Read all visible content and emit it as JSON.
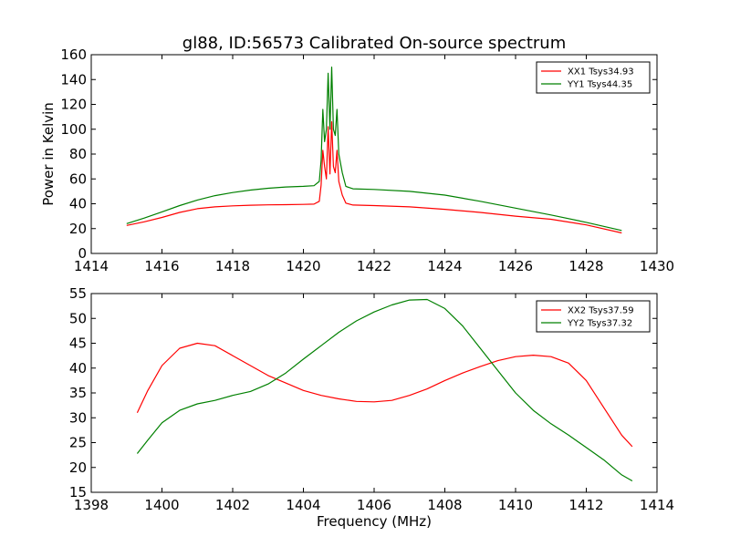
{
  "chart_data": [
    {
      "type": "line",
      "title": "gl88, ID:56573 Calibrated On-source spectrum",
      "xlabel": "",
      "ylabel": "Power in Kelvin",
      "xlim": [
        1414,
        1430
      ],
      "ylim": [
        0,
        160
      ],
      "xticks": [
        1414,
        1416,
        1418,
        1420,
        1422,
        1424,
        1426,
        1428,
        1430
      ],
      "yticks": [
        0,
        20,
        40,
        60,
        80,
        100,
        120,
        140,
        160
      ],
      "legend_position": "top-right",
      "grid": false,
      "series": [
        {
          "name": "XX1 Tsys34.93",
          "color": "#ff0000",
          "points": [
            [
              1415.0,
              22.5
            ],
            [
              1415.5,
              25.5
            ],
            [
              1416.0,
              29
            ],
            [
              1416.5,
              33
            ],
            [
              1417.0,
              36
            ],
            [
              1417.5,
              37.5
            ],
            [
              1418.0,
              38.3
            ],
            [
              1418.5,
              38.8
            ],
            [
              1419.0,
              39.1
            ],
            [
              1419.5,
              39.3
            ],
            [
              1420.0,
              39.5
            ],
            [
              1420.3,
              39.7
            ],
            [
              1420.45,
              42
            ],
            [
              1420.5,
              55
            ],
            [
              1420.55,
              83
            ],
            [
              1420.6,
              70
            ],
            [
              1420.65,
              60
            ],
            [
              1420.7,
              102
            ],
            [
              1420.75,
              64
            ],
            [
              1420.8,
              106
            ],
            [
              1420.85,
              70
            ],
            [
              1420.9,
              65
            ],
            [
              1420.95,
              83
            ],
            [
              1421.0,
              58
            ],
            [
              1421.1,
              47
            ],
            [
              1421.2,
              40.5
            ],
            [
              1421.4,
              39
            ],
            [
              1422.0,
              38.5
            ],
            [
              1423.0,
              37.5
            ],
            [
              1424.0,
              35.5
            ],
            [
              1425.0,
              33
            ],
            [
              1426.0,
              30
            ],
            [
              1427.0,
              27.5
            ],
            [
              1428.0,
              23
            ],
            [
              1429.0,
              16.5
            ]
          ]
        },
        {
          "name": "YY1 Tsys44.35",
          "color": "#008000",
          "points": [
            [
              1415.0,
              24
            ],
            [
              1415.5,
              28.5
            ],
            [
              1416.0,
              33.5
            ],
            [
              1416.5,
              38.5
            ],
            [
              1417.0,
              43
            ],
            [
              1417.5,
              46.5
            ],
            [
              1418.0,
              49
            ],
            [
              1418.5,
              51
            ],
            [
              1419.0,
              52.5
            ],
            [
              1419.5,
              53.5
            ],
            [
              1420.0,
              54
            ],
            [
              1420.3,
              54.5
            ],
            [
              1420.45,
              58
            ],
            [
              1420.5,
              75
            ],
            [
              1420.55,
              116
            ],
            [
              1420.6,
              90
            ],
            [
              1420.65,
              100
            ],
            [
              1420.7,
              145
            ],
            [
              1420.75,
              100
            ],
            [
              1420.8,
              150
            ],
            [
              1420.85,
              100
            ],
            [
              1420.9,
              95
            ],
            [
              1420.95,
              116
            ],
            [
              1421.0,
              80
            ],
            [
              1421.1,
              65
            ],
            [
              1421.2,
              54
            ],
            [
              1421.4,
              52
            ],
            [
              1422.0,
              51.5
            ],
            [
              1423.0,
              50
            ],
            [
              1424.0,
              47
            ],
            [
              1425.0,
              42
            ],
            [
              1426.0,
              36.5
            ],
            [
              1427.0,
              31
            ],
            [
              1428.0,
              25
            ],
            [
              1429.0,
              18.5
            ]
          ]
        }
      ]
    },
    {
      "type": "line",
      "title": "",
      "xlabel": "Frequency (MHz)",
      "ylabel": "",
      "xlim": [
        1398,
        1414
      ],
      "ylim": [
        15,
        55
      ],
      "xticks": [
        1398,
        1400,
        1402,
        1404,
        1406,
        1408,
        1410,
        1412,
        1414
      ],
      "yticks": [
        15,
        20,
        25,
        30,
        35,
        40,
        45,
        50,
        55
      ],
      "legend_position": "top-right",
      "grid": false,
      "series": [
        {
          "name": "XX2 Tsys37.59",
          "color": "#ff0000",
          "points": [
            [
              1399.3,
              31
            ],
            [
              1399.6,
              35.5
            ],
            [
              1400.0,
              40.5
            ],
            [
              1400.5,
              44
            ],
            [
              1401.0,
              45
            ],
            [
              1401.5,
              44.5
            ],
            [
              1402.0,
              42.5
            ],
            [
              1402.5,
              40.5
            ],
            [
              1403.0,
              38.5
            ],
            [
              1403.5,
              37
            ],
            [
              1404.0,
              35.5
            ],
            [
              1404.5,
              34.5
            ],
            [
              1405.0,
              33.8
            ],
            [
              1405.5,
              33.3
            ],
            [
              1406.0,
              33.2
            ],
            [
              1406.5,
              33.5
            ],
            [
              1407.0,
              34.5
            ],
            [
              1407.5,
              35.8
            ],
            [
              1408.0,
              37.5
            ],
            [
              1408.5,
              39
            ],
            [
              1409.0,
              40.3
            ],
            [
              1409.5,
              41.5
            ],
            [
              1410.0,
              42.3
            ],
            [
              1410.5,
              42.6
            ],
            [
              1411.0,
              42.3
            ],
            [
              1411.5,
              41
            ],
            [
              1412.0,
              37.5
            ],
            [
              1412.5,
              32
            ],
            [
              1413.0,
              26.5
            ],
            [
              1413.3,
              24.2
            ]
          ]
        },
        {
          "name": "YY2 Tsys37.32",
          "color": "#008000",
          "points": [
            [
              1399.3,
              22.8
            ],
            [
              1399.6,
              25.5
            ],
            [
              1400.0,
              29
            ],
            [
              1400.5,
              31.5
            ],
            [
              1401.0,
              32.8
            ],
            [
              1401.5,
              33.5
            ],
            [
              1402.0,
              34.5
            ],
            [
              1402.5,
              35.3
            ],
            [
              1403.0,
              36.8
            ],
            [
              1403.5,
              39
            ],
            [
              1404.0,
              41.8
            ],
            [
              1404.5,
              44.5
            ],
            [
              1405.0,
              47.2
            ],
            [
              1405.5,
              49.5
            ],
            [
              1406.0,
              51.3
            ],
            [
              1406.5,
              52.7
            ],
            [
              1407.0,
              53.7
            ],
            [
              1407.5,
              53.8
            ],
            [
              1408.0,
              52
            ],
            [
              1408.5,
              48.5
            ],
            [
              1409.0,
              44
            ],
            [
              1409.5,
              39.5
            ],
            [
              1410.0,
              35
            ],
            [
              1410.5,
              31.5
            ],
            [
              1411.0,
              28.8
            ],
            [
              1411.5,
              26.5
            ],
            [
              1412.0,
              24
            ],
            [
              1412.5,
              21.5
            ],
            [
              1413.0,
              18.5
            ],
            [
              1413.3,
              17.3
            ]
          ]
        }
      ]
    }
  ]
}
